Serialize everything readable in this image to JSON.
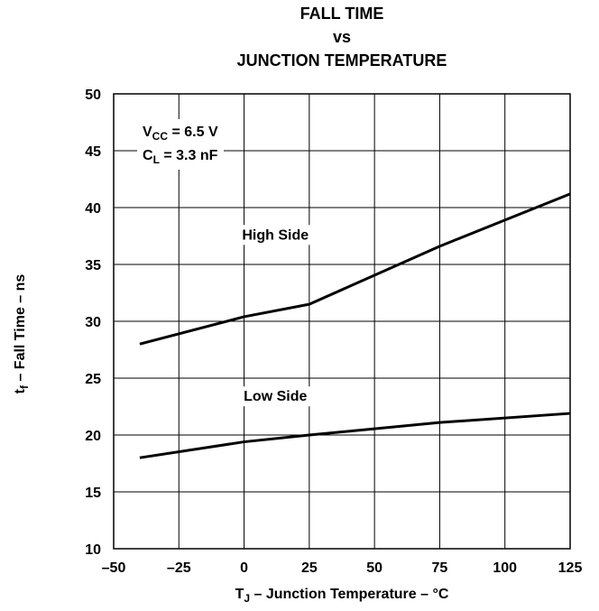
{
  "chart_data": {
    "type": "line",
    "title": [
      "FALL TIME",
      "vs",
      "JUNCTION TEMPERATURE"
    ],
    "xlabel": {
      "prefix": "T",
      "sub": "J",
      "rest": " – Junction Temperature – °C"
    },
    "ylabel": {
      "prefix": "t",
      "sub": "f",
      "rest": " – Fall Time – ns"
    },
    "xlim": [
      -50,
      125
    ],
    "ylim": [
      10,
      50
    ],
    "x_ticks": [
      -50,
      -25,
      0,
      25,
      50,
      75,
      100,
      125
    ],
    "x_tick_labels": [
      "–50",
      "–25",
      "0",
      "25",
      "50",
      "75",
      "100",
      "125"
    ],
    "y_ticks": [
      10,
      15,
      20,
      25,
      30,
      35,
      40,
      45,
      50
    ],
    "y_tick_labels": [
      "10",
      "15",
      "20",
      "25",
      "30",
      "35",
      "40",
      "45",
      "50"
    ],
    "grid": true,
    "conditions": [
      {
        "prefix": "V",
        "sub": "CC",
        "rest": " = 6.5 V"
      },
      {
        "prefix": "C",
        "sub": "L",
        "rest": " = 3.3 nF"
      }
    ],
    "series": [
      {
        "name": "High Side",
        "x": [
          -40,
          0,
          25,
          75,
          125
        ],
        "y": [
          28.0,
          30.4,
          31.5,
          36.6,
          41.2
        ]
      },
      {
        "name": "Low Side",
        "x": [
          -40,
          0,
          25,
          75,
          125
        ],
        "y": [
          18.0,
          19.4,
          20.0,
          21.1,
          21.9
        ]
      }
    ],
    "series_label_positions": [
      {
        "x": 12,
        "y": 37.2
      },
      {
        "x": 12,
        "y": 23.0
      }
    ]
  }
}
